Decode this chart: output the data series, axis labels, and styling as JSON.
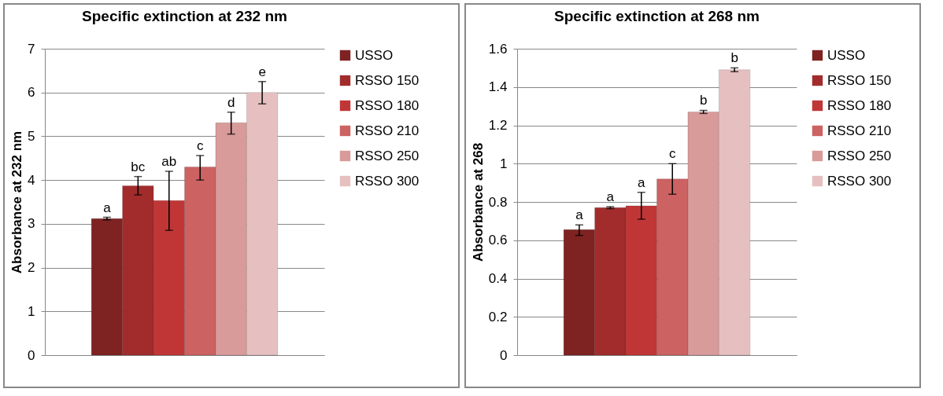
{
  "chart_data": [
    {
      "type": "bar",
      "title": "Specific extinction at 232 nm",
      "ylabel": "Absorbance at 232 nm",
      "categories": [
        null
      ],
      "ylim": [
        0,
        7
      ],
      "yticks": [
        0,
        1,
        2,
        3,
        4,
        5,
        6,
        7
      ],
      "grid": "y",
      "legend": "right",
      "tick_labels": "y",
      "series": [
        {
          "name": "USSO",
          "color": "#7e2222",
          "values": [
            3.12
          ],
          "errors": [
            0.03
          ],
          "value_labels": [
            "a"
          ]
        },
        {
          "name": "RSSO 150",
          "color": "#a22c2c",
          "values": [
            3.87
          ],
          "errors": [
            0.21
          ],
          "value_labels": [
            "bc"
          ]
        },
        {
          "name": "RSSO 180",
          "color": "#c03636",
          "values": [
            3.53
          ],
          "errors": [
            [
              2.85,
              4.2
            ]
          ],
          "value_labels": [
            "ab"
          ]
        },
        {
          "name": "RSSO 210",
          "color": "#cc6262",
          "values": [
            4.3
          ],
          "errors": [
            [
              4.0,
              4.56
            ]
          ],
          "value_labels": [
            "c"
          ]
        },
        {
          "name": "RSSO 250",
          "color": "#d99a9a",
          "values": [
            5.31
          ],
          "errors": [
            [
              5.05,
              5.55
            ]
          ],
          "value_labels": [
            "d"
          ]
        },
        {
          "name": "RSSO 300",
          "color": "#e6c0c0",
          "values": [
            6.0
          ],
          "errors": [
            [
              5.74,
              6.25
            ]
          ],
          "value_labels": [
            "e"
          ]
        }
      ]
    },
    {
      "type": "bar",
      "title": "Specific extinction at 268 nm",
      "ylabel": "Absorbance at 268",
      "categories": [
        null
      ],
      "ylim": [
        0,
        1.6
      ],
      "yticks": [
        0,
        0.2,
        0.4,
        0.6,
        0.8,
        1,
        1.2,
        1.4,
        1.6
      ],
      "grid": "y",
      "legend": "right",
      "tick_labels": "y",
      "series": [
        {
          "name": "USSO",
          "color": "#7e2222",
          "values": [
            0.655
          ],
          "errors": [
            [
              0.625,
              0.68
            ]
          ],
          "value_labels": [
            "a"
          ]
        },
        {
          "name": "RSSO 150",
          "color": "#a22c2c",
          "values": [
            0.77
          ],
          "errors": [
            0.005
          ],
          "value_labels": [
            "a"
          ]
        },
        {
          "name": "RSSO 180",
          "color": "#c03636",
          "values": [
            0.78
          ],
          "errors": [
            [
              0.71,
              0.85
            ]
          ],
          "value_labels": [
            "a"
          ]
        },
        {
          "name": "RSSO 210",
          "color": "#cc6262",
          "values": [
            0.92
          ],
          "errors": [
            [
              0.84,
              1.0
            ]
          ],
          "value_labels": [
            "c"
          ]
        },
        {
          "name": "RSSO 250",
          "color": "#d99a9a",
          "values": [
            1.27
          ],
          "errors": [
            0.008
          ],
          "value_labels": [
            "b"
          ]
        },
        {
          "name": "RSSO 300",
          "color": "#e6c0c0",
          "values": [
            1.49
          ],
          "errors": [
            0.01
          ],
          "value_labels": [
            "b"
          ]
        }
      ]
    }
  ]
}
